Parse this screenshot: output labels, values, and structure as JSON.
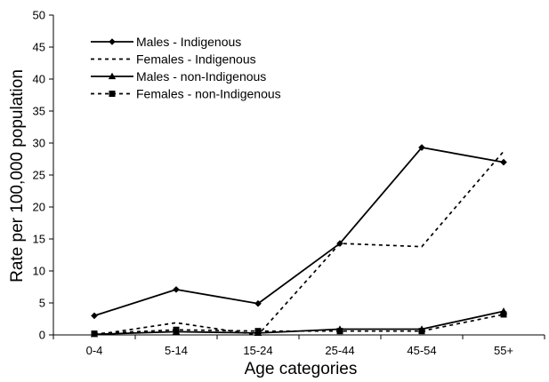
{
  "chart_data": {
    "type": "line",
    "title": "",
    "xlabel": "Age categories",
    "ylabel": "Rate per 100,000 population",
    "categories": [
      "0-4",
      "5-14",
      "15-24",
      "25-44",
      "45-54",
      "55+"
    ],
    "ylim": [
      0,
      50
    ],
    "yticks": [
      "0",
      "5",
      "10",
      "15",
      "20",
      "25",
      "30",
      "35",
      "40",
      "45",
      "50"
    ],
    "grid": false,
    "legend_position": "top-left",
    "series": [
      {
        "name": "Males - Indigenous",
        "values": [
          3.0,
          7.1,
          4.9,
          14.3,
          29.3,
          27.0
        ],
        "line": "solid",
        "marker": "diamond",
        "color": "#000000"
      },
      {
        "name": "Females - Indigenous",
        "values": [
          0.0,
          1.9,
          0.0,
          14.3,
          13.8,
          28.7
        ],
        "line": "dashed",
        "marker": "none",
        "color": "#000000"
      },
      {
        "name": "Males - non-Indigenous",
        "values": [
          0.1,
          0.5,
          0.3,
          0.9,
          0.9,
          3.7
        ],
        "line": "solid",
        "marker": "triangle",
        "color": "#000000"
      },
      {
        "name": "Females - non-Indigenous",
        "values": [
          0.2,
          0.8,
          0.6,
          0.6,
          0.6,
          3.2
        ],
        "line": "dashed",
        "marker": "square",
        "color": "#000000"
      }
    ]
  }
}
